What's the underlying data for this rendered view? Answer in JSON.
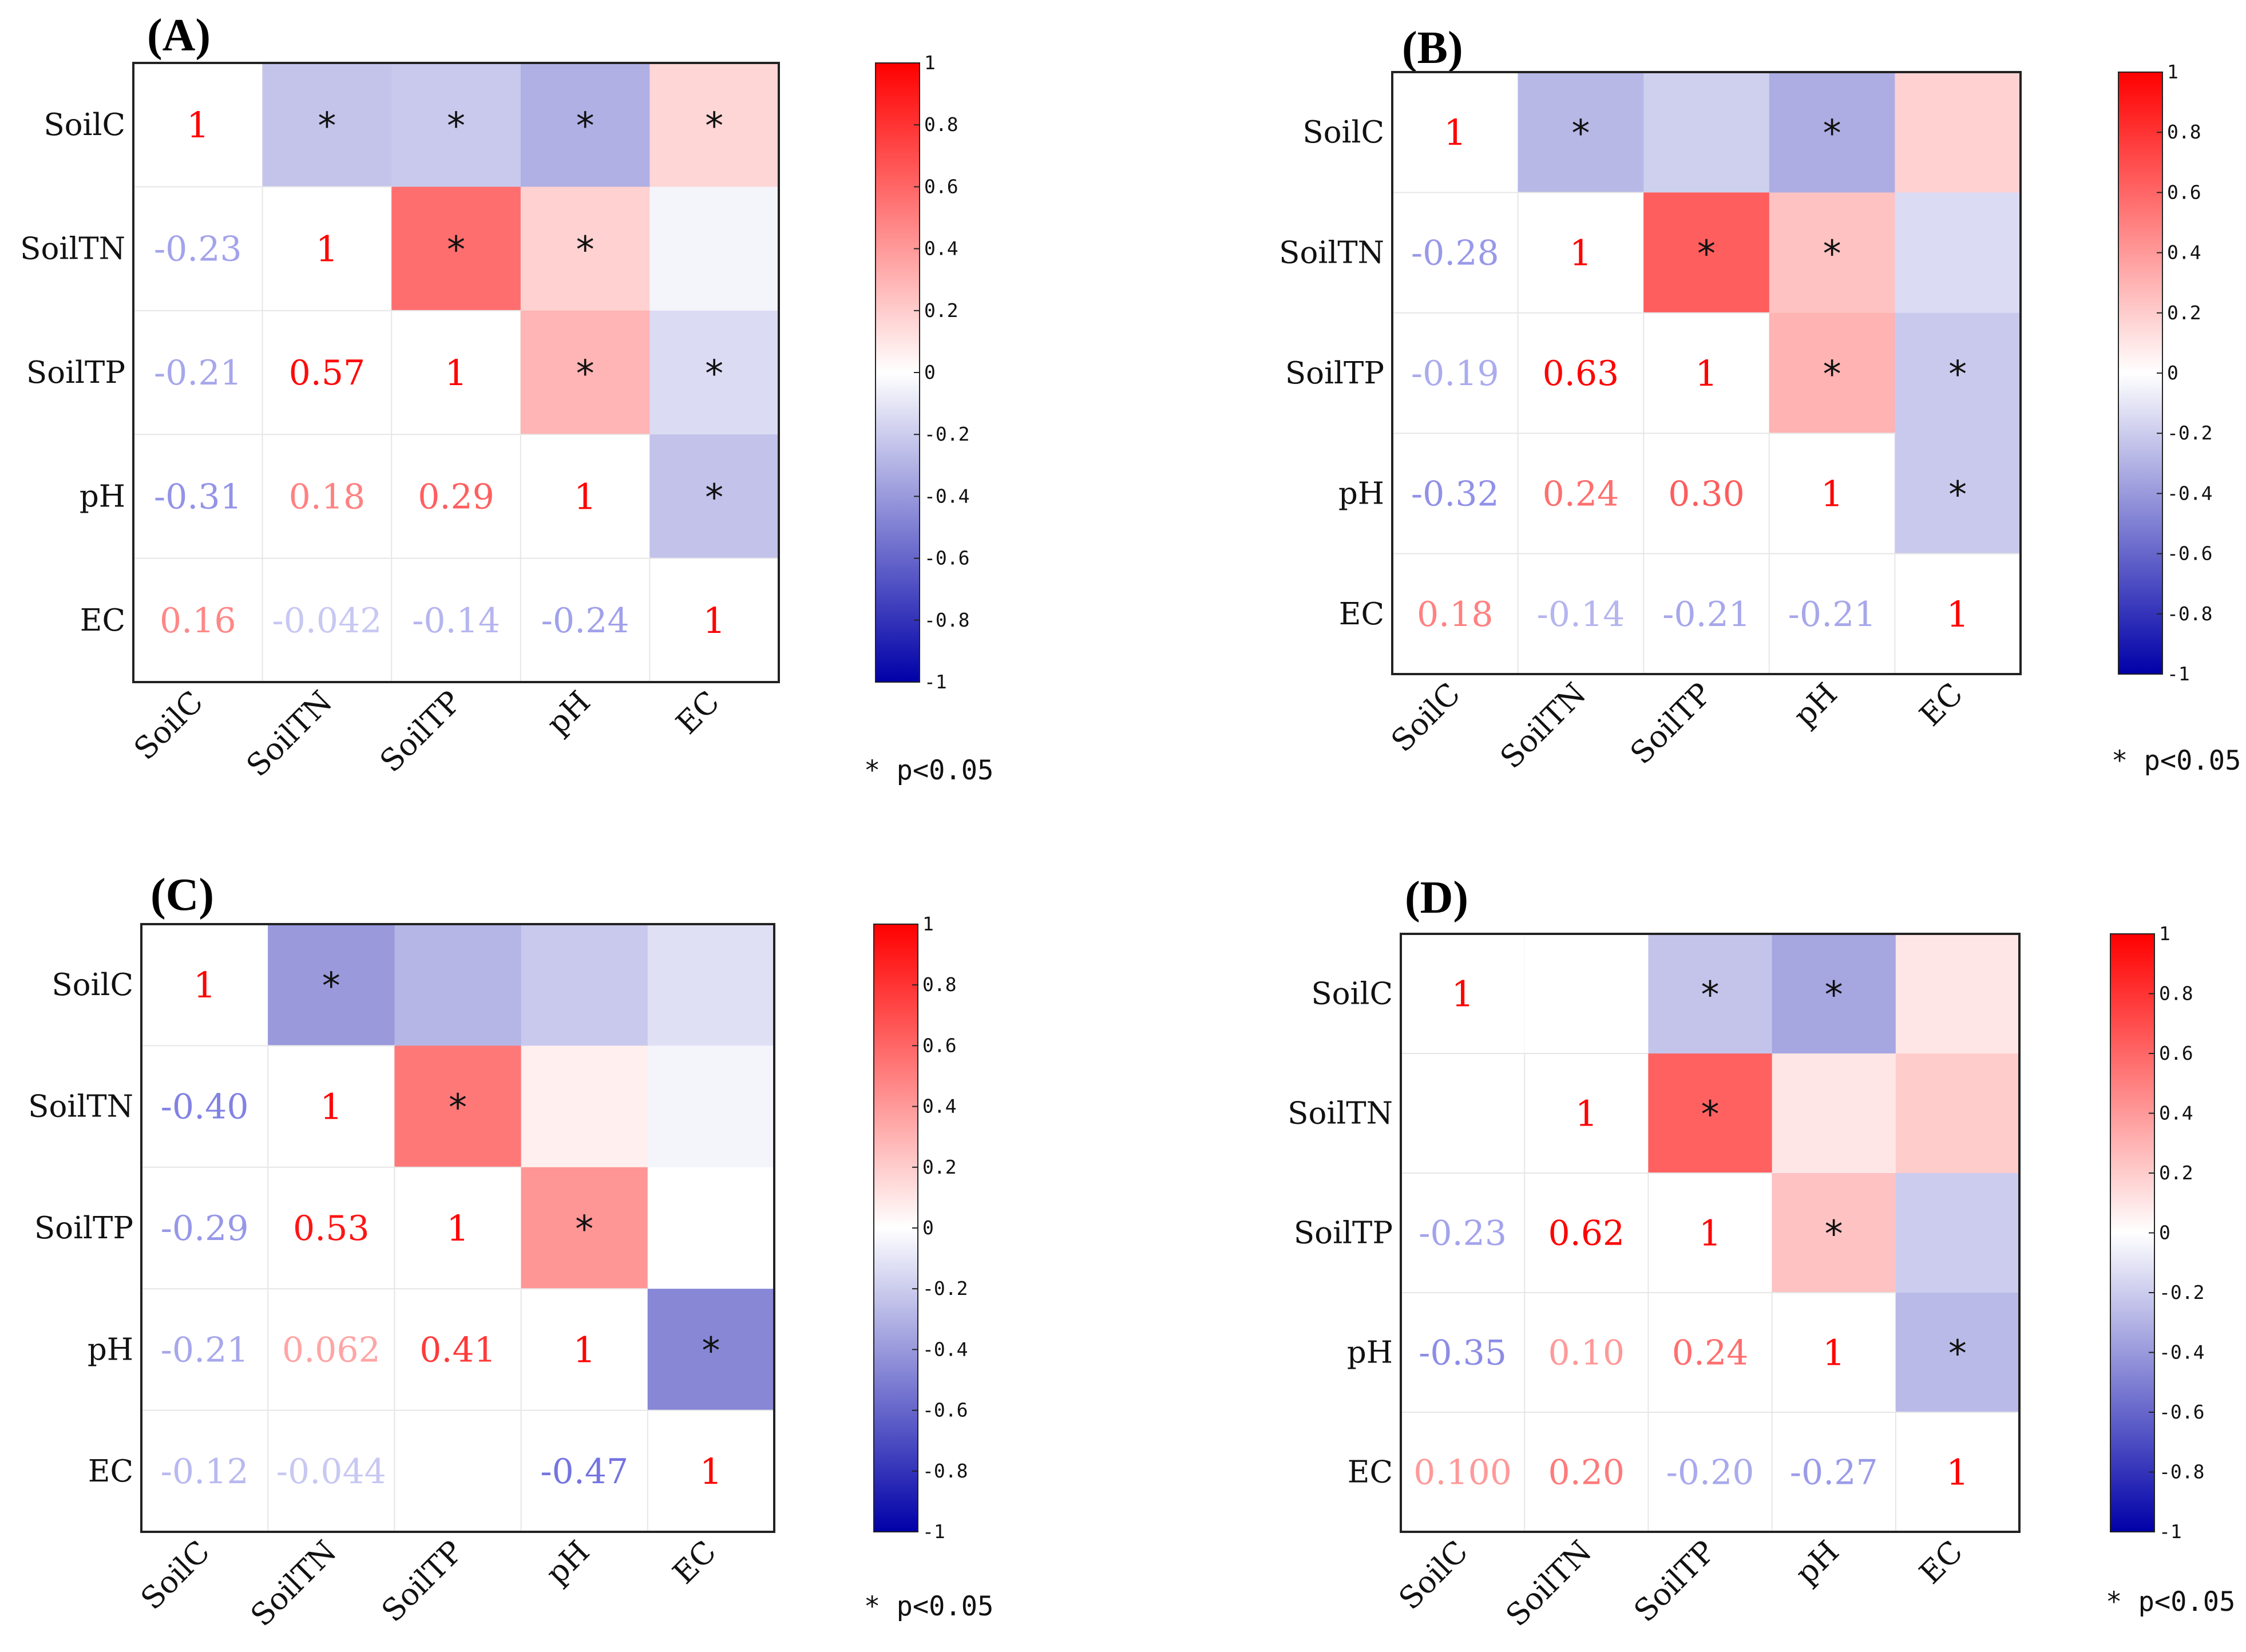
{
  "figure": {
    "significance_note": "* p<0.05",
    "colorbar_ticks": [
      "1",
      "0.8",
      "0.6",
      "0.4",
      "0.2",
      "0",
      "-0.2",
      "-0.4",
      "-0.6",
      "-0.8",
      "-1"
    ],
    "colors": {
      "positive": "#ff0000",
      "negative": "#0000a8",
      "neutral": "#ffffff"
    }
  },
  "chart_data": [
    {
      "type": "heatmap",
      "panel": "(A)",
      "variables": [
        "SoilC",
        "SoilTN",
        "SoilTP",
        "pH",
        "EC"
      ],
      "colorbar_range": [
        -1,
        1
      ],
      "matrix": [
        [
          1,
          -0.23,
          -0.21,
          -0.31,
          0.16
        ],
        [
          -0.23,
          1,
          0.57,
          0.18,
          -0.042
        ],
        [
          -0.21,
          0.57,
          1,
          0.29,
          -0.14
        ],
        [
          -0.31,
          0.18,
          0.29,
          1,
          -0.24
        ],
        [
          0.16,
          -0.042,
          -0.14,
          -0.24,
          1
        ]
      ],
      "lower_labels": [
        [
          null,
          null,
          null,
          null
        ],
        [
          "-0.23",
          null,
          null,
          null
        ],
        [
          "-0.21",
          "0.57",
          null,
          null
        ],
        [
          "-0.31",
          "0.18",
          "0.29",
          null
        ],
        [
          "0.16",
          "-0.042",
          "-0.14",
          "-0.24"
        ]
      ],
      "significant_upper": [
        [
          0,
          1
        ],
        [
          0,
          2
        ],
        [
          0,
          3
        ],
        [
          0,
          4
        ],
        [
          1,
          2
        ],
        [
          1,
          3
        ],
        [
          2,
          3
        ],
        [
          2,
          4
        ],
        [
          3,
          4
        ]
      ]
    },
    {
      "type": "heatmap",
      "panel": "(B)",
      "variables": [
        "SoilC",
        "SoilTN",
        "SoilTP",
        "pH",
        "EC"
      ],
      "colorbar_range": [
        -1,
        1
      ],
      "matrix": [
        [
          1,
          -0.28,
          -0.19,
          -0.32,
          0.18
        ],
        [
          -0.28,
          1,
          0.63,
          0.24,
          -0.14
        ],
        [
          -0.19,
          0.63,
          1,
          0.3,
          -0.21
        ],
        [
          -0.32,
          0.24,
          0.3,
          1,
          -0.21
        ],
        [
          0.18,
          -0.14,
          -0.21,
          -0.21,
          1
        ]
      ],
      "lower_labels": [
        [
          null,
          null,
          null,
          null
        ],
        [
          "-0.28",
          null,
          null,
          null
        ],
        [
          "-0.19",
          "0.63",
          null,
          null
        ],
        [
          "-0.32",
          "0.24",
          "0.30",
          null
        ],
        [
          "0.18",
          "-0.14",
          "-0.21",
          "-0.21"
        ]
      ],
      "significant_upper": [
        [
          0,
          1
        ],
        [
          0,
          3
        ],
        [
          1,
          2
        ],
        [
          1,
          3
        ],
        [
          2,
          3
        ],
        [
          2,
          4
        ],
        [
          3,
          4
        ]
      ]
    },
    {
      "type": "heatmap",
      "panel": "(C)",
      "variables": [
        "SoilC",
        "SoilTN",
        "SoilTP",
        "pH",
        "EC"
      ],
      "colorbar_range": [
        -1,
        1
      ],
      "matrix": [
        [
          1,
          -0.4,
          -0.29,
          -0.21,
          -0.12
        ],
        [
          -0.4,
          1,
          0.53,
          0.062,
          -0.044
        ],
        [
          -0.29,
          0.53,
          1,
          0.41,
          0.0
        ],
        [
          -0.21,
          0.062,
          0.41,
          1,
          -0.47
        ],
        [
          -0.12,
          -0.044,
          0.0,
          -0.47,
          1
        ]
      ],
      "lower_labels": [
        [
          null,
          null,
          null,
          null
        ],
        [
          "-0.40",
          null,
          null,
          null
        ],
        [
          "-0.29",
          "0.53",
          null,
          null
        ],
        [
          "-0.21",
          "0.062",
          "0.41",
          null
        ],
        [
          "-0.12",
          "-0.044",
          null,
          "-0.47"
        ]
      ],
      "significant_upper": [
        [
          0,
          1
        ],
        [
          1,
          2
        ],
        [
          2,
          3
        ],
        [
          3,
          4
        ]
      ]
    },
    {
      "type": "heatmap",
      "panel": "(D)",
      "variables": [
        "SoilC",
        "SoilTN",
        "SoilTP",
        "pH",
        "EC"
      ],
      "colorbar_range": [
        -1,
        1
      ],
      "matrix": [
        [
          1,
          0.0,
          -0.23,
          -0.35,
          0.1
        ],
        [
          0.0,
          1,
          0.62,
          0.1,
          0.2
        ],
        [
          -0.23,
          0.62,
          1,
          0.24,
          -0.2
        ],
        [
          -0.35,
          0.1,
          0.24,
          1,
          -0.27
        ],
        [
          0.1,
          0.2,
          -0.2,
          -0.27,
          1
        ]
      ],
      "lower_labels": [
        [
          null,
          null,
          null,
          null
        ],
        [
          null,
          null,
          null,
          null
        ],
        [
          "-0.23",
          "0.62",
          null,
          null
        ],
        [
          "-0.35",
          "0.10",
          "0.24",
          null
        ],
        [
          "0.100",
          "0.20",
          "-0.20",
          "-0.27"
        ]
      ],
      "significant_upper": [
        [
          0,
          2
        ],
        [
          0,
          3
        ],
        [
          1,
          2
        ],
        [
          2,
          3
        ],
        [
          3,
          4
        ]
      ]
    }
  ]
}
